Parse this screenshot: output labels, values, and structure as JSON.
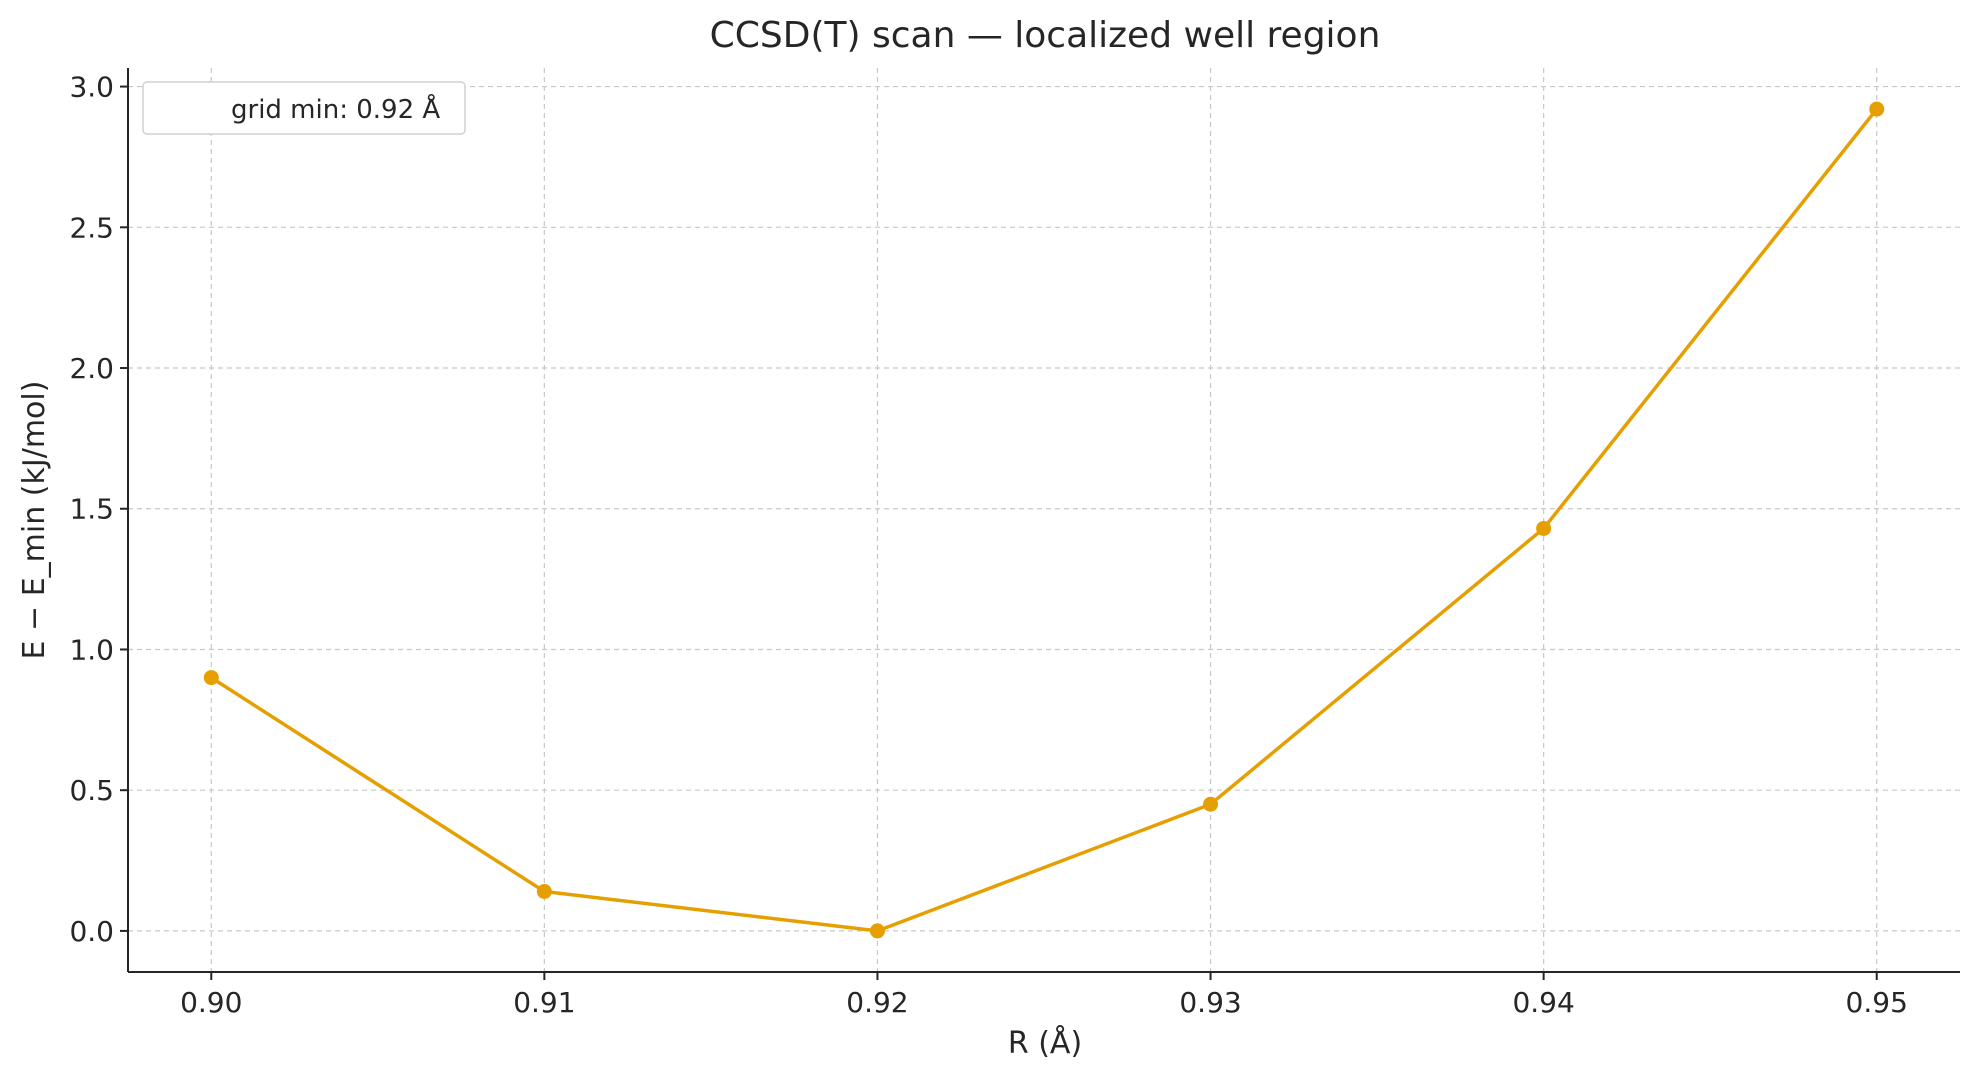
{
  "chart_data": {
    "type": "line",
    "title": "CCSD(T) scan — localized well region",
    "xlabel": "R (Å)",
    "ylabel": "E − E_min (kJ/mol)",
    "x": [
      0.9,
      0.91,
      0.92,
      0.93,
      0.94,
      0.95
    ],
    "xticks": [
      "0.90",
      "0.91",
      "0.92",
      "0.93",
      "0.94",
      "0.95"
    ],
    "yticks": [
      "0.0",
      "0.5",
      "1.0",
      "1.5",
      "2.0",
      "2.5",
      "3.0"
    ],
    "xlim": [
      0.8975,
      0.9525
    ],
    "ylim": [
      -0.146,
      3.066
    ],
    "grid": true,
    "series": [
      {
        "values": [
          0.9,
          0.14,
          0.0,
          0.45,
          1.43,
          2.92
        ],
        "color": "#E69F00",
        "marker": "circle"
      }
    ],
    "legend": {
      "placement": "top-left",
      "text": "grid min: 0.92 Å"
    }
  }
}
